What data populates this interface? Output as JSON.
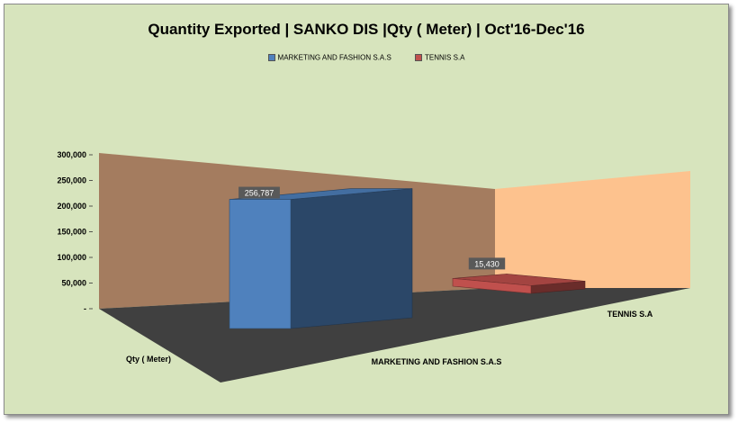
{
  "chart_data": {
    "type": "bar",
    "title": "Quantity Exported | SANKO DIS |Qty ( Meter) | Oct'16-Dec'16",
    "categories": [
      "MARKETING AND FASHION S.A.S",
      "TENNIS S.A"
    ],
    "series": [
      {
        "name": "MARKETING AND FASHION S.A.S",
        "color": "#4f81bd",
        "values": [
          256787,
          null
        ]
      },
      {
        "name": "TENNIS S.A",
        "color": "#c0504d",
        "values": [
          null,
          15430
        ]
      }
    ],
    "data_labels": [
      "256,787",
      "15,430"
    ],
    "ylim": [
      0,
      300000
    ],
    "ytick_values": [
      0,
      50000,
      100000,
      150000,
      200000,
      250000,
      300000
    ],
    "ytick_labels": [
      "-",
      "50,000",
      "100,000",
      "150,000",
      "200,000",
      "250,000",
      "300,000"
    ],
    "series_axis_label": "Qty ( Meter)",
    "legend_position": "top",
    "style": "3d",
    "colors": {
      "background": "#d7e4bd",
      "back_wall": "#a47c5f",
      "side_wall": "#fdc28e",
      "floor": "#404040"
    }
  }
}
